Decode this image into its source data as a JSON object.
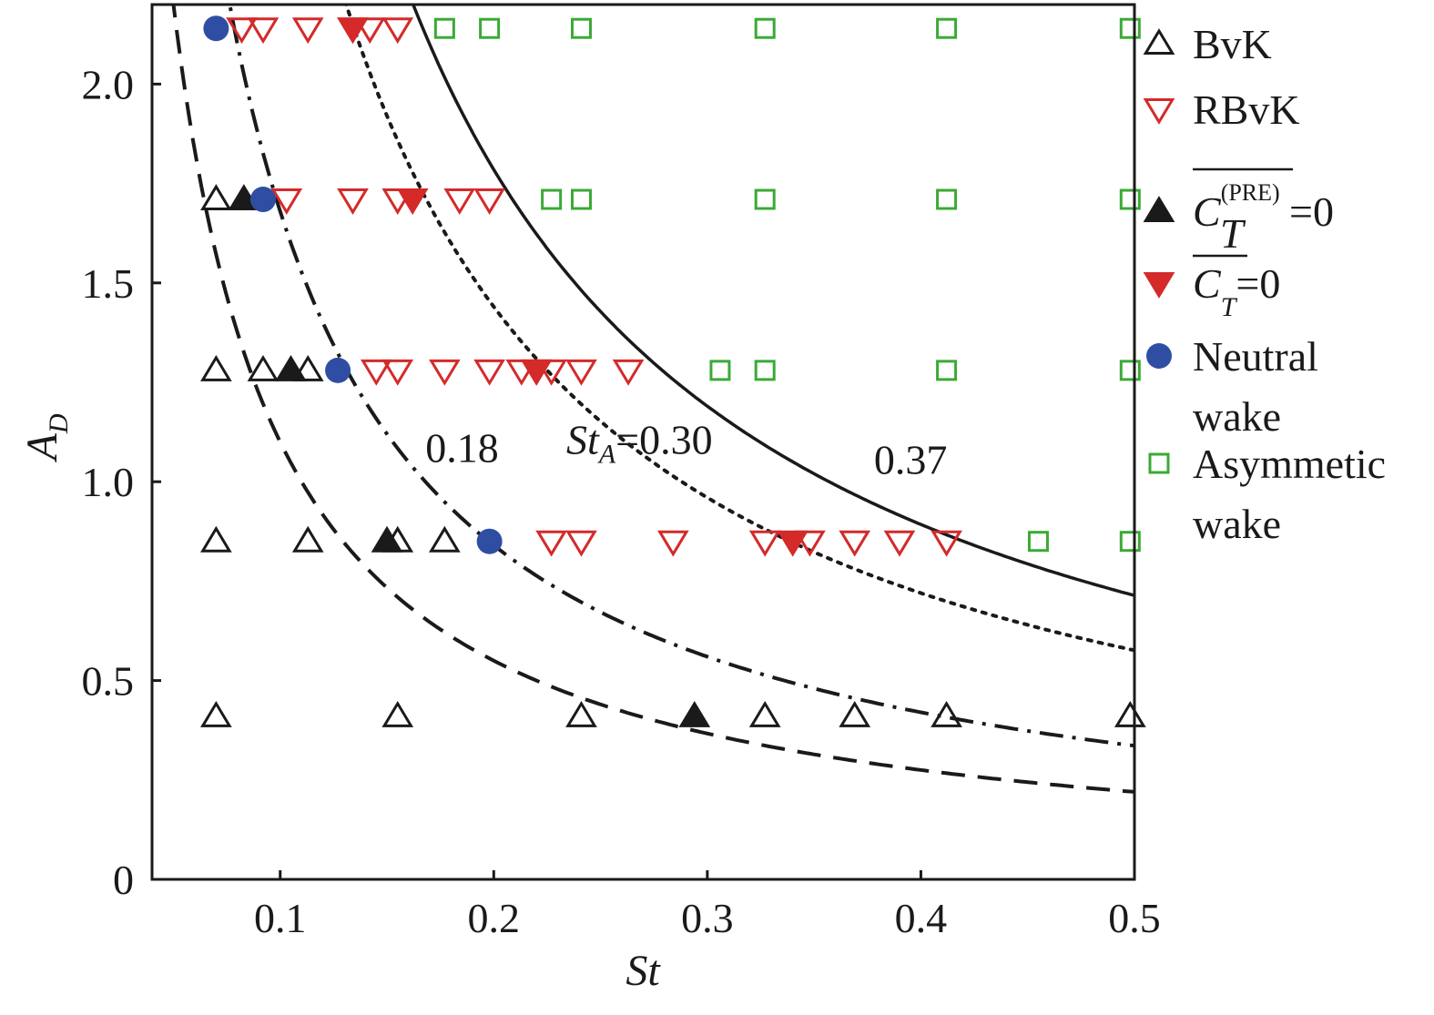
{
  "chart_data": {
    "type": "scatter",
    "xlabel": "St",
    "ylabel": "A",
    "ylabel_sub": "D",
    "xlim": [
      0.04,
      0.5
    ],
    "ylim": [
      0,
      2.2
    ],
    "x_ticks": [
      {
        "value": 0.1,
        "label": "0.1"
      },
      {
        "value": 0.2,
        "label": "0.2"
      },
      {
        "value": 0.3,
        "label": "0.3"
      },
      {
        "value": 0.4,
        "label": "0.4"
      },
      {
        "value": 0.5,
        "label": "0.5"
      }
    ],
    "y_ticks": [
      {
        "value": 0,
        "label": "0"
      },
      {
        "value": 0.5,
        "label": "0.5"
      },
      {
        "value": 1.0,
        "label": "1.0"
      },
      {
        "value": 1.5,
        "label": "1.5"
      },
      {
        "value": 2.0,
        "label": "2.0"
      }
    ],
    "grid": false,
    "legend_position": "right",
    "legend": [
      {
        "key": "bvk",
        "marker": "triangle-up-open",
        "color": "#1a1a1a",
        "lines": [
          "BvK"
        ]
      },
      {
        "key": "rbvk",
        "marker": "triangle-down-open",
        "color": "#d42a2a",
        "lines": [
          "RBvK"
        ]
      },
      {
        "key": "ct_pre",
        "marker": "triangle-up-filled",
        "color": "#1a1a1a",
        "lines": [
          "C",
          "(PRE)",
          "T",
          "=0"
        ]
      },
      {
        "key": "ct",
        "marker": "triangle-down-filled",
        "color": "#d42a2a",
        "lines": [
          "C",
          "T",
          "=0"
        ]
      },
      {
        "key": "neutral",
        "marker": "circle-filled",
        "color": "#2f4ea3",
        "lines": [
          "Neutral",
          "wake"
        ]
      },
      {
        "key": "asym",
        "marker": "square-open",
        "color": "#3aaa35",
        "lines": [
          "Asymmetic",
          "wake"
        ]
      }
    ],
    "series": [
      {
        "key": "bvk",
        "marker": "triangle-up-open",
        "color": "#1a1a1a",
        "points": [
          [
            0.07,
            1.71
          ],
          [
            0.07,
            1.28
          ],
          [
            0.092,
            1.28
          ],
          [
            0.113,
            1.28
          ],
          [
            0.07,
            0.85
          ],
          [
            0.113,
            0.85
          ],
          [
            0.155,
            0.85
          ],
          [
            0.177,
            0.85
          ],
          [
            0.07,
            0.41
          ],
          [
            0.155,
            0.41
          ],
          [
            0.241,
            0.41
          ],
          [
            0.327,
            0.41
          ],
          [
            0.369,
            0.41
          ],
          [
            0.412,
            0.41
          ],
          [
            0.498,
            0.41
          ]
        ]
      },
      {
        "key": "rbvk",
        "marker": "triangle-down-open",
        "color": "#d42a2a",
        "points": [
          [
            0.082,
            2.14
          ],
          [
            0.092,
            2.14
          ],
          [
            0.113,
            2.14
          ],
          [
            0.134,
            2.14
          ],
          [
            0.142,
            2.14
          ],
          [
            0.155,
            2.14
          ],
          [
            0.103,
            1.71
          ],
          [
            0.134,
            1.71
          ],
          [
            0.155,
            1.71
          ],
          [
            0.184,
            1.71
          ],
          [
            0.198,
            1.71
          ],
          [
            0.145,
            1.28
          ],
          [
            0.155,
            1.28
          ],
          [
            0.177,
            1.28
          ],
          [
            0.198,
            1.28
          ],
          [
            0.213,
            1.28
          ],
          [
            0.22,
            1.28
          ],
          [
            0.227,
            1.28
          ],
          [
            0.241,
            1.28
          ],
          [
            0.263,
            1.28
          ],
          [
            0.227,
            0.85
          ],
          [
            0.241,
            0.85
          ],
          [
            0.284,
            0.85
          ],
          [
            0.327,
            0.85
          ],
          [
            0.348,
            0.85
          ],
          [
            0.369,
            0.85
          ],
          [
            0.39,
            0.85
          ],
          [
            0.412,
            0.85
          ]
        ]
      },
      {
        "key": "ct_pre",
        "marker": "triangle-up-filled",
        "color": "#1a1a1a",
        "points": [
          [
            0.083,
            1.71
          ],
          [
            0.105,
            1.28
          ],
          [
            0.15,
            0.85
          ],
          [
            0.294,
            0.41
          ]
        ]
      },
      {
        "key": "ct",
        "marker": "triangle-down-filled",
        "color": "#d42a2a",
        "points": [
          [
            0.134,
            2.14
          ],
          [
            0.162,
            1.71
          ],
          [
            0.22,
            1.28
          ],
          [
            0.34,
            0.85
          ]
        ]
      },
      {
        "key": "neutral",
        "marker": "circle-filled",
        "color": "#2f4ea3",
        "points": [
          [
            0.07,
            2.14
          ],
          [
            0.092,
            1.71
          ],
          [
            0.127,
            1.28
          ],
          [
            0.198,
            0.85
          ]
        ]
      },
      {
        "key": "asym",
        "marker": "square-open",
        "color": "#3aaa35",
        "points": [
          [
            0.177,
            2.14
          ],
          [
            0.198,
            2.14
          ],
          [
            0.241,
            2.14
          ],
          [
            0.327,
            2.14
          ],
          [
            0.412,
            2.14
          ],
          [
            0.498,
            2.14
          ],
          [
            0.227,
            1.71
          ],
          [
            0.241,
            1.71
          ],
          [
            0.327,
            1.71
          ],
          [
            0.412,
            1.71
          ],
          [
            0.498,
            1.71
          ],
          [
            0.306,
            1.28
          ],
          [
            0.327,
            1.28
          ],
          [
            0.412,
            1.28
          ],
          [
            0.498,
            1.28
          ],
          [
            0.455,
            0.85
          ],
          [
            0.498,
            0.85
          ]
        ]
      }
    ],
    "curves": [
      {
        "style": "dashed",
        "A_times_St": 0.11
      },
      {
        "style": "dashdot",
        "A_times_St": 0.168
      },
      {
        "style": "dotted",
        "A_times_St": 0.288
      },
      {
        "style": "solid",
        "A_times_St": 0.357
      }
    ],
    "annotations": [
      {
        "text": "0.18",
        "x": 0.168,
        "y": 1.05
      },
      {
        "text": "St",
        "subscript": "A",
        "suffix": "=0.30",
        "x": 0.234,
        "y": 1.07
      },
      {
        "text": "0.37",
        "x": 0.378,
        "y": 1.02
      }
    ]
  }
}
